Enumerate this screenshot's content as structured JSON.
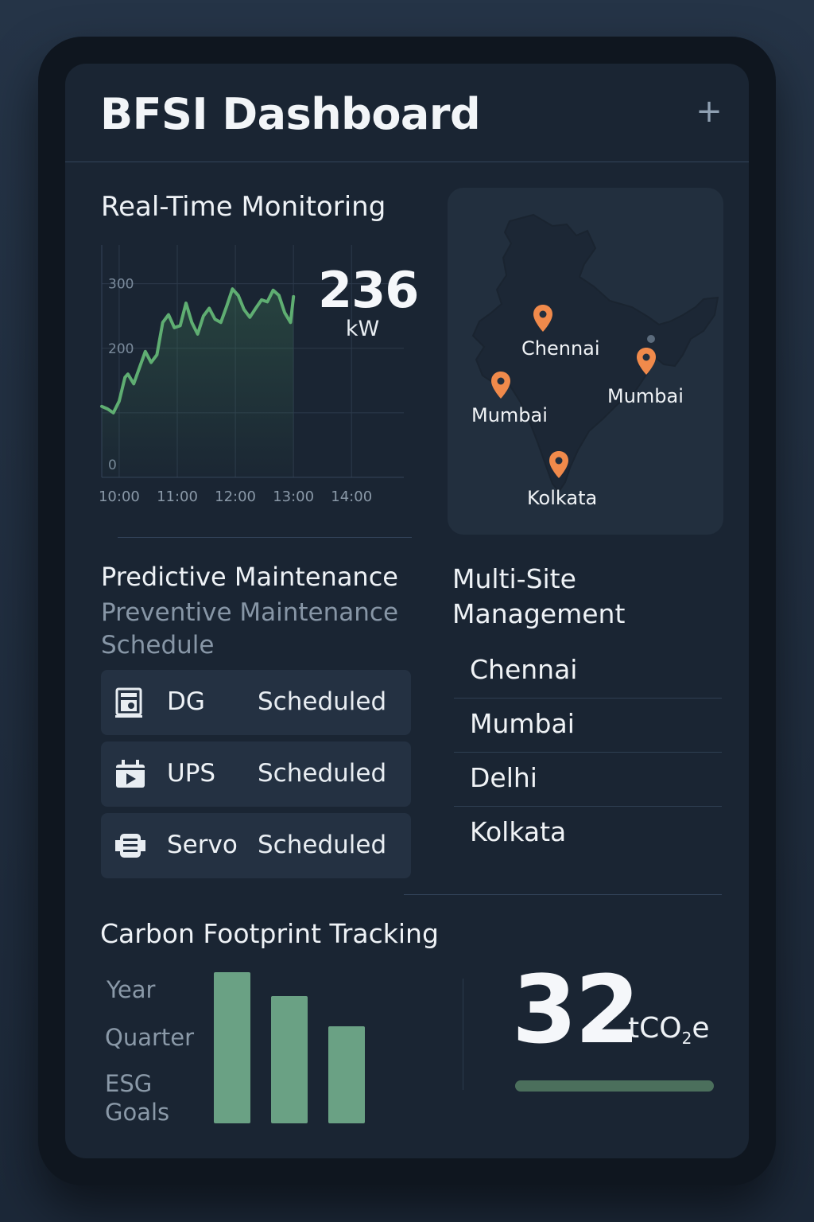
{
  "header": {
    "title": "BFSI Dashboard",
    "add_icon": "plus-icon",
    "add_symbol": "+"
  },
  "realtime": {
    "title": "Real-Time Monitoring",
    "value": "236",
    "unit": "kW",
    "y_ticks": [
      "300",
      "200",
      "0"
    ],
    "x_ticks": [
      "10:00",
      "11:00",
      "12:00",
      "13:00",
      "14:00"
    ]
  },
  "chart_data": {
    "type": "line",
    "title": "Real-Time Monitoring",
    "xlabel": "",
    "ylabel": "",
    "x_ticks": [
      "10:00",
      "11:00",
      "12:00",
      "13:00",
      "14:00"
    ],
    "y_ticks": [
      0,
      200,
      300
    ],
    "ylim": [
      0,
      360
    ],
    "grid": true,
    "series": [
      {
        "color": "#5fae72",
        "x": [
          9.7,
          9.8,
          9.9,
          10.0,
          10.1,
          10.15,
          10.25,
          10.35,
          10.45,
          10.55,
          10.65,
          10.75,
          10.85,
          10.95,
          11.05,
          11.15,
          11.25,
          11.35,
          11.45,
          11.55,
          11.65,
          11.75,
          11.85,
          11.95,
          12.05,
          12.15,
          12.25,
          12.35,
          12.45,
          12.55,
          12.65,
          12.75,
          12.85,
          12.95,
          13.0
        ],
        "y": [
          110,
          106,
          100,
          118,
          155,
          160,
          145,
          170,
          195,
          178,
          190,
          240,
          252,
          232,
          235,
          270,
          240,
          222,
          250,
          262,
          245,
          240,
          265,
          292,
          282,
          260,
          248,
          262,
          275,
          272,
          290,
          282,
          255,
          240,
          280
        ]
      }
    ]
  },
  "map": {
    "pins": [
      {
        "label": "Chennai",
        "color": "#f08a4b"
      },
      {
        "label": "Mumbai",
        "color": "#f08a4b"
      },
      {
        "label": "Mumbai",
        "color": "#f08a4b"
      },
      {
        "label": "Kolkata",
        "color": "#f08a4b"
      }
    ]
  },
  "maintenance": {
    "title": "Predictive Maintenance",
    "subtitle_line1": "Preventive Maintenance",
    "subtitle_line2": "Schedule",
    "tasks": [
      {
        "name": "DG",
        "status": "Scheduled",
        "icon": "generator-icon"
      },
      {
        "name": "UPS",
        "status": "Scheduled",
        "icon": "ups-icon"
      },
      {
        "name": "Servo",
        "status": "Scheduled",
        "icon": "servo-icon"
      }
    ]
  },
  "sites": {
    "title_line1": "Multi-Site",
    "title_line2": "Management",
    "items": [
      "Chennai",
      "Mumbai",
      "Delhi",
      "Kolkata"
    ]
  },
  "carbon": {
    "title": "Carbon Footprint Tracking",
    "periods": [
      "Year",
      "Quarter",
      "ESG",
      "Goals"
    ],
    "bar_values": [
      100,
      84,
      64
    ],
    "bar_color": "#6aa184",
    "value": "32",
    "unit_main": "tCO",
    "unit_sub": "2",
    "unit_tail": "e",
    "progress": 1.0
  },
  "colors": {
    "background": "#1a2533",
    "accent_green": "#5fae72",
    "pin_orange": "#f08a4b"
  }
}
